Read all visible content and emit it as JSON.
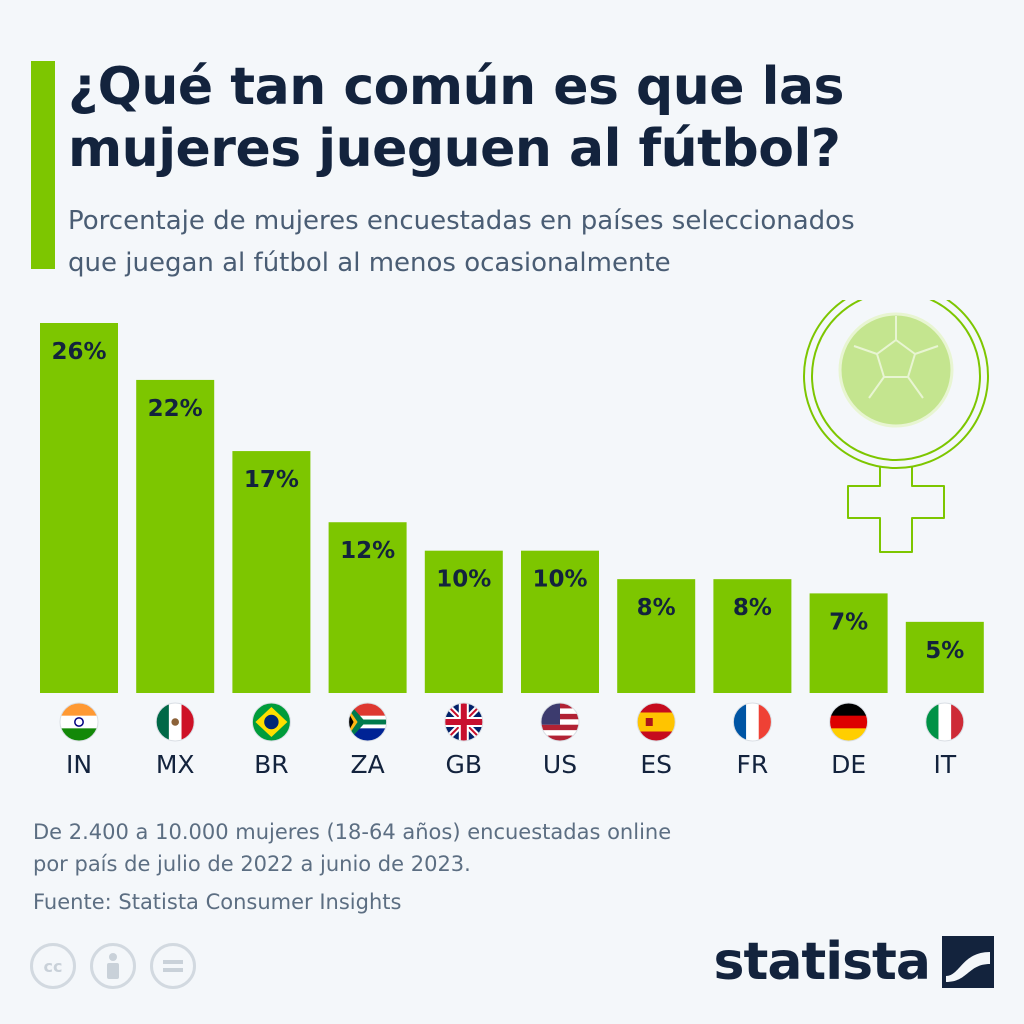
{
  "header": {
    "title_line1": "¿Qué tan común es que las",
    "title_line2": "mujeres jueguen al fútbol?",
    "subtitle_line1": "Porcentaje de mujeres encuestadas en países seleccionados",
    "subtitle_line2": "que juegan al fútbol al menos ocasionalmente"
  },
  "chart_data": {
    "type": "bar",
    "categories": [
      "IN",
      "MX",
      "BR",
      "ZA",
      "GB",
      "US",
      "ES",
      "FR",
      "DE",
      "IT"
    ],
    "values": [
      26,
      22,
      17,
      12,
      10,
      10,
      8,
      8,
      7,
      5
    ],
    "value_labels": [
      "26%",
      "22%",
      "17%",
      "12%",
      "10%",
      "10%",
      "8%",
      "8%",
      "7%",
      "5%"
    ],
    "ylim": [
      0,
      26
    ],
    "grid": false,
    "legend": "none",
    "bar_color": "#7dc600"
  },
  "footer": {
    "note_line1": "De 2.400 a 10.000 mujeres (18-64 años) encuestadas online",
    "note_line2": "por país de julio de 2022 a junio de 2023.",
    "source": "Fuente: Statista Consumer Insights",
    "brand": "statista",
    "license_icons": [
      "cc-icon",
      "attribution-icon",
      "no-derivatives-icon"
    ]
  },
  "colors": {
    "accent": "#7dc600",
    "title": "#13233d",
    "subtitle": "#4a5d74",
    "background": "#f4f7fa"
  }
}
